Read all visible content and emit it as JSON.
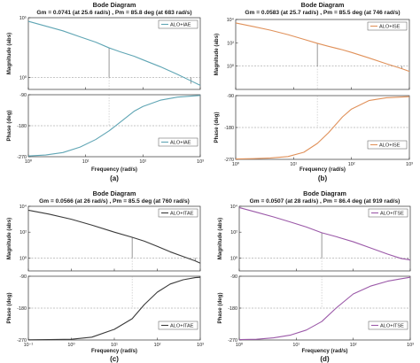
{
  "chart_data": [
    {
      "type": "line",
      "caption": "(a)",
      "title": "Bode Diagram",
      "subtitle": "Gm = 0.0741  (at 25.6 rad/s) ,  Pm = 85.8 deg (at 683 rad/s)",
      "color": "#5fa5b4",
      "xlabel": "Frequency  (rad/s)",
      "xlim": [
        1,
        1000
      ],
      "x_ticks": [
        1,
        10,
        100,
        1000
      ],
      "x_tick_labels": [
        "10⁰",
        "10¹",
        "10²",
        "10³"
      ],
      "magnitude": {
        "ylabel": "Magnitude (abs)",
        "scale": "log",
        "ylim": [
          0.1,
          100000
        ],
        "y_ticks": [
          1,
          100000
        ],
        "y_tick_labels": [
          "10⁰",
          "10⁵"
        ],
        "legend": "ALO+IAE",
        "legend_position": "top-right",
        "x": [
          1,
          2,
          4,
          8,
          15,
          25.6,
          40,
          70,
          100,
          200,
          400,
          700,
          1000
        ],
        "values": [
          50000,
          20000,
          8000,
          2500,
          900,
          300,
          140,
          60,
          30,
          8,
          1.8,
          0.5,
          0.22
        ],
        "gain_margin_marker": {
          "x": 25.6,
          "from": 1,
          "to": 300
        },
        "phase_margin_marker": {
          "x": 683,
          "from": 0.3,
          "to": 1
        }
      },
      "phase": {
        "ylabel": "Phase (deg)",
        "ylim": [
          -270,
          -90
        ],
        "y_ticks": [
          -270,
          -180,
          -90
        ],
        "legend": "ALO+IAE",
        "legend_position": "bottom-right",
        "x": [
          1,
          2,
          4,
          8,
          15,
          25.6,
          40,
          70,
          100,
          200,
          400,
          683,
          1000
        ],
        "values": [
          -268,
          -265,
          -258,
          -242,
          -220,
          -195,
          -170,
          -138,
          -124,
          -106,
          -97,
          -94,
          -92
        ],
        "reference_line": -180
      }
    },
    {
      "type": "line",
      "caption": "(b)",
      "title": "Bode Diagram",
      "subtitle": "Gm = 0.0583  (at 25.7 rad/s) ,  Pm = 85.5 deg (at 746 rad/s)",
      "color": "#e0915a",
      "xlabel": "Frequency  (rad/s)",
      "xlim": [
        1,
        1000
      ],
      "x_ticks": [
        1,
        10,
        100,
        1000
      ],
      "x_tick_labels": [
        "10⁰",
        "10¹",
        "10²",
        "10³"
      ],
      "magnitude": {
        "ylabel": "Magnitude (abs)",
        "scale": "log",
        "ylim": [
          0.01,
          10000
        ],
        "y_ticks": [
          1,
          100,
          10000
        ],
        "y_tick_labels": [
          "10⁰",
          "10²",
          "10⁴"
        ],
        "legend": "ALO+ISE",
        "legend_position": "top-right",
        "x": [
          1,
          2,
          4,
          8,
          15,
          25.7,
          40,
          70,
          100,
          200,
          400,
          746,
          1000
        ],
        "values": [
          5000,
          2500,
          1200,
          500,
          200,
          90,
          50,
          25,
          15,
          5,
          1.6,
          0.6,
          0.35
        ],
        "gain_margin_marker": {
          "x": 25.7,
          "from": 1,
          "to": 90
        },
        "phase_margin_marker": {
          "x": 746,
          "from": 0.6,
          "to": 1
        }
      },
      "phase": {
        "ylabel": "Phase (deg)",
        "ylim": [
          -270,
          -90
        ],
        "y_ticks": [
          -270,
          -180,
          -90
        ],
        "legend": "ALO+ISE",
        "legend_position": "bottom-right",
        "x": [
          1,
          2,
          4,
          8,
          15,
          25.7,
          40,
          70,
          100,
          200,
          400,
          746,
          1000
        ],
        "values": [
          -269,
          -268,
          -266,
          -262,
          -250,
          -225,
          -195,
          -150,
          -128,
          -104,
          -96,
          -94,
          -93
        ],
        "reference_line": -180
      }
    },
    {
      "type": "line",
      "caption": "(c)",
      "title": "Bode Diagram",
      "subtitle": "Gm = 0.0566  (at 26 rad/s) ,  Pm = 85.5 deg (at 760 rad/s)",
      "color": "#3a3a3a",
      "xlabel": "Frequency  (rad/s)",
      "xlim": [
        0.1,
        1000
      ],
      "x_ticks": [
        0.1,
        1,
        10,
        100,
        1000
      ],
      "x_tick_labels": [
        "10⁻¹",
        "10⁰",
        "10¹",
        "10²",
        "10³"
      ],
      "magnitude": {
        "ylabel": "Magnitude (abs)",
        "scale": "log",
        "ylim": [
          0.1,
          10000
        ],
        "y_ticks": [
          1,
          100,
          10000
        ],
        "y_tick_labels": [
          "10⁰",
          "10²",
          "10⁴"
        ],
        "legend": "ALO+ITAE",
        "legend_position": "top-right",
        "x": [
          0.1,
          0.3,
          1,
          3,
          10,
          26,
          50,
          100,
          200,
          400,
          760,
          1000
        ],
        "values": [
          5000,
          2500,
          1000,
          350,
          100,
          40,
          20,
          8,
          3,
          1.3,
          0.6,
          0.4
        ],
        "gain_margin_marker": {
          "x": 26,
          "from": 1,
          "to": 40
        },
        "phase_margin_marker": {
          "x": 760,
          "from": 0.6,
          "to": 1
        }
      },
      "phase": {
        "ylabel": "Phase (deg)",
        "ylim": [
          -270,
          -90
        ],
        "y_ticks": [
          -270,
          -180,
          -90
        ],
        "legend": "ALO+ITAE",
        "legend_position": "bottom-right",
        "x": [
          0.1,
          0.3,
          1,
          3,
          10,
          26,
          50,
          100,
          200,
          400,
          760,
          1000
        ],
        "values": [
          -269.5,
          -269,
          -268,
          -262,
          -240,
          -210,
          -170,
          -135,
          -112,
          -100,
          -94,
          -93
        ],
        "reference_line": -180
      }
    },
    {
      "type": "line",
      "caption": "(d)",
      "title": "Bode Diagram",
      "subtitle": "Gm = 0.0507  (at 28 rad/s) ,  Pm = 86.4 deg (at 919 rad/s)",
      "color": "#9b59a8",
      "xlabel": "Frequency  (rad/s)",
      "xlim": [
        1,
        1000
      ],
      "x_ticks": [
        1,
        10,
        100,
        1000
      ],
      "x_tick_labels": [
        "10⁰",
        "10¹",
        "10²",
        "10³"
      ],
      "magnitude": {
        "ylabel": "Magnitude (abs)",
        "scale": "log",
        "ylim": [
          0.1,
          10000
        ],
        "y_ticks": [
          1,
          100,
          10000
        ],
        "y_tick_labels": [
          "10⁰",
          "10²",
          "10⁴"
        ],
        "legend": "ALO+ITSE",
        "legend_position": "top-right",
        "x": [
          1,
          2,
          4,
          8,
          15,
          28,
          50,
          100,
          200,
          400,
          700,
          919,
          1000
        ],
        "values": [
          8000,
          3500,
          1500,
          600,
          250,
          90,
          45,
          18,
          6,
          2,
          0.9,
          0.75,
          0.7
        ],
        "gain_margin_marker": {
          "x": 28,
          "from": 1,
          "to": 90
        },
        "phase_margin_marker": {
          "x": 919,
          "from": 0.75,
          "to": 1
        }
      },
      "phase": {
        "ylabel": "Phase (deg)",
        "ylim": [
          -270,
          -90
        ],
        "y_ticks": [
          -270,
          -180,
          -90
        ],
        "legend": "ALO+ITSE",
        "legend_position": "bottom-right",
        "x": [
          1,
          2,
          4,
          8,
          15,
          28,
          50,
          100,
          200,
          400,
          700,
          919,
          1000
        ],
        "values": [
          -269,
          -268,
          -264,
          -256,
          -242,
          -218,
          -180,
          -140,
          -118,
          -104,
          -97,
          -94,
          -93
        ],
        "reference_line": -180
      }
    }
  ]
}
